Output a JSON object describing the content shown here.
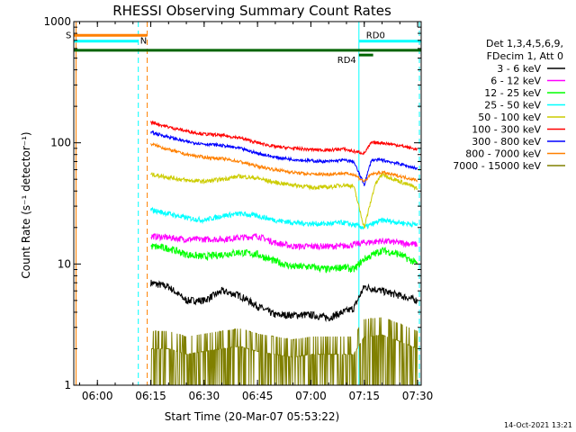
{
  "chart_data": {
    "type": "line",
    "title": "RHESSI Observing Summary Count Rates",
    "xlabel": "Start Time (20-Mar-07 05:53:22)",
    "ylabel": "Count Rate (s⁻¹ detector⁻¹)",
    "y_scale": "log",
    "ylim": [
      1,
      1000
    ],
    "xlim": [
      "05:53:22",
      "07:31:00"
    ],
    "x_ticks": [
      "06:00",
      "06:15",
      "06:30",
      "06:45",
      "07:00",
      "07:15",
      "07:30"
    ],
    "y_ticks": [
      "1",
      "10",
      "100",
      "1000"
    ],
    "legend_header": [
      "Det 1,3,4,5,6,9,",
      "FDecim 1, Att 0"
    ],
    "legend_position": "right",
    "series": [
      {
        "name": "3 - 6 keV",
        "color": "#000000",
        "points": [
          [
            "06:15",
            7
          ],
          [
            "06:20",
            6.5
          ],
          [
            "06:25",
            5
          ],
          [
            "06:30",
            5
          ],
          [
            "06:35",
            6
          ],
          [
            "06:40",
            5.5
          ],
          [
            "06:45",
            4.5
          ],
          [
            "06:50",
            3.8
          ],
          [
            "06:55",
            3.8
          ],
          [
            "07:00",
            3.8
          ],
          [
            "07:05",
            3.6
          ],
          [
            "07:09",
            4
          ],
          [
            "07:12",
            4.3
          ],
          [
            "07:15",
            6.5
          ],
          [
            "07:20",
            6
          ],
          [
            "07:25",
            5.5
          ],
          [
            "07:30",
            5
          ]
        ]
      },
      {
        "name": "6 - 12 keV",
        "color": "#ff00ff",
        "points": [
          [
            "06:15",
            17
          ],
          [
            "06:20",
            16.5
          ],
          [
            "06:25",
            16
          ],
          [
            "06:30",
            16
          ],
          [
            "06:35",
            16
          ],
          [
            "06:40",
            16.5
          ],
          [
            "06:45",
            17
          ],
          [
            "06:50",
            15
          ],
          [
            "06:55",
            14
          ],
          [
            "07:00",
            14
          ],
          [
            "07:05",
            14
          ],
          [
            "07:09",
            14
          ],
          [
            "07:12",
            14.5
          ],
          [
            "07:15",
            15
          ],
          [
            "07:20",
            15.5
          ],
          [
            "07:25",
            15
          ],
          [
            "07:30",
            14.5
          ]
        ]
      },
      {
        "name": "12 - 25 keV",
        "color": "#00ff00",
        "points": [
          [
            "06:15",
            14
          ],
          [
            "06:20",
            13.5
          ],
          [
            "06:25",
            12
          ],
          [
            "06:30",
            11.5
          ],
          [
            "06:35",
            12
          ],
          [
            "06:40",
            12.5
          ],
          [
            "06:45",
            12
          ],
          [
            "06:50",
            10.5
          ],
          [
            "06:55",
            9.5
          ],
          [
            "07:00",
            9.5
          ],
          [
            "07:05",
            9
          ],
          [
            "07:09",
            9.5
          ],
          [
            "07:12",
            9
          ],
          [
            "07:15",
            11
          ],
          [
            "07:20",
            13
          ],
          [
            "07:25",
            12
          ],
          [
            "07:30",
            10
          ]
        ]
      },
      {
        "name": "25 - 50 keV",
        "color": "#00ffff",
        "points": [
          [
            "06:15",
            28
          ],
          [
            "06:20",
            26
          ],
          [
            "06:25",
            24
          ],
          [
            "06:30",
            23
          ],
          [
            "06:35",
            25
          ],
          [
            "06:40",
            26
          ],
          [
            "06:45",
            25
          ],
          [
            "06:50",
            23
          ],
          [
            "06:55",
            22
          ],
          [
            "07:00",
            21.5
          ],
          [
            "07:05",
            21.5
          ],
          [
            "07:09",
            22
          ],
          [
            "07:12",
            21
          ],
          [
            "07:15",
            20
          ],
          [
            "07:20",
            23
          ],
          [
            "07:25",
            22
          ],
          [
            "07:30",
            21
          ]
        ]
      },
      {
        "name": "50 - 100 keV",
        "color": "#cccc00",
        "points": [
          [
            "06:15",
            55
          ],
          [
            "06:20",
            52
          ],
          [
            "06:25",
            49
          ],
          [
            "06:30",
            48
          ],
          [
            "06:35",
            50
          ],
          [
            "06:40",
            53
          ],
          [
            "06:45",
            51
          ],
          [
            "06:50",
            47
          ],
          [
            "06:55",
            45
          ],
          [
            "07:00",
            43
          ],
          [
            "07:05",
            43
          ],
          [
            "07:09",
            45
          ],
          [
            "07:12",
            44
          ],
          [
            "07:15",
            20
          ],
          [
            "07:18",
            45
          ],
          [
            "07:20",
            55
          ],
          [
            "07:25",
            48
          ],
          [
            "07:30",
            42
          ]
        ]
      },
      {
        "name": "100 - 300 keV",
        "color": "#ff0000",
        "points": [
          [
            "06:15",
            148
          ],
          [
            "06:20",
            135
          ],
          [
            "06:25",
            125
          ],
          [
            "06:30",
            118
          ],
          [
            "06:35",
            115
          ],
          [
            "06:40",
            110
          ],
          [
            "06:45",
            100
          ],
          [
            "06:50",
            93
          ],
          [
            "06:55",
            90
          ],
          [
            "07:00",
            88
          ],
          [
            "07:05",
            87
          ],
          [
            "07:09",
            89
          ],
          [
            "07:12",
            85
          ],
          [
            "07:15",
            82
          ],
          [
            "07:17",
            100
          ],
          [
            "07:20",
            100
          ],
          [
            "07:25",
            95
          ],
          [
            "07:30",
            88
          ]
        ]
      },
      {
        "name": "300 - 800 keV",
        "color": "#0000ff",
        "points": [
          [
            "06:15",
            122
          ],
          [
            "06:20",
            112
          ],
          [
            "06:25",
            102
          ],
          [
            "06:30",
            98
          ],
          [
            "06:35",
            95
          ],
          [
            "06:40",
            90
          ],
          [
            "06:45",
            82
          ],
          [
            "06:50",
            76
          ],
          [
            "06:55",
            73
          ],
          [
            "07:00",
            71
          ],
          [
            "07:05",
            70
          ],
          [
            "07:09",
            72
          ],
          [
            "07:12",
            70
          ],
          [
            "07:15",
            45
          ],
          [
            "07:17",
            72
          ],
          [
            "07:20",
            72
          ],
          [
            "07:25",
            67
          ],
          [
            "07:30",
            61
          ]
        ]
      },
      {
        "name": "800 - 7000 keV",
        "color": "#ff8000",
        "points": [
          [
            "06:15",
            98
          ],
          [
            "06:20",
            88
          ],
          [
            "06:25",
            80
          ],
          [
            "06:30",
            76
          ],
          [
            "06:35",
            74
          ],
          [
            "06:40",
            70
          ],
          [
            "06:45",
            64
          ],
          [
            "06:50",
            60
          ],
          [
            "06:55",
            57
          ],
          [
            "07:00",
            55
          ],
          [
            "07:05",
            55
          ],
          [
            "07:09",
            56
          ],
          [
            "07:12",
            55
          ],
          [
            "07:15",
            48
          ],
          [
            "07:17",
            55
          ],
          [
            "07:20",
            57
          ],
          [
            "07:25",
            53
          ],
          [
            "07:30",
            49
          ]
        ]
      },
      {
        "name": "7000 - 15000 keV",
        "color": "#808000",
        "points": [
          [
            "06:15",
            2
          ],
          [
            "06:20",
            2
          ],
          [
            "06:25",
            1.8
          ],
          [
            "06:30",
            1.9
          ],
          [
            "06:35",
            2
          ],
          [
            "06:40",
            2.1
          ],
          [
            "06:45",
            1.9
          ],
          [
            "06:50",
            1.8
          ],
          [
            "06:55",
            1.7
          ],
          [
            "07:00",
            1.8
          ],
          [
            "07:05",
            1.8
          ],
          [
            "07:09",
            1.8
          ],
          [
            "07:12",
            1.8
          ],
          [
            "07:15",
            2.5
          ],
          [
            "07:20",
            2.6
          ],
          [
            "07:25",
            2.3
          ],
          [
            "07:30",
            2
          ]
        ]
      }
    ],
    "annotations": {
      "flags": [
        {
          "label": "S",
          "color": "#ff8000",
          "y": 770,
          "from": "05:53:22",
          "to": "06:14:00"
        },
        {
          "label": "N",
          "color": "#00ffff",
          "y": 690,
          "from": "05:53:22",
          "to": "06:11:30"
        },
        {
          "label": "",
          "color": "#006400",
          "y": 580,
          "from": "05:53:22",
          "to": "07:31:00"
        },
        {
          "label": "RD0",
          "color": "#00ffff",
          "y": 690,
          "from": "07:13:30",
          "to": "07:31:00"
        },
        {
          "label": "RD4",
          "color": "#006400",
          "y": 530,
          "from": "07:13:30",
          "to": "07:17:30"
        }
      ],
      "vlines": [
        {
          "t": "05:54:00",
          "color": "#ff8000",
          "dashed": false
        },
        {
          "t": "06:11:30",
          "color": "#00ffff",
          "dashed": true
        },
        {
          "t": "06:14:00",
          "color": "#ff8000",
          "dashed": true
        },
        {
          "t": "07:13:30",
          "color": "#00ffff",
          "dashed": false
        },
        {
          "t": "07:30:30",
          "color": "#00ffff",
          "dashed": true
        }
      ]
    }
  },
  "footer": {
    "timestamp": "14-Oct-2021 13:21"
  }
}
